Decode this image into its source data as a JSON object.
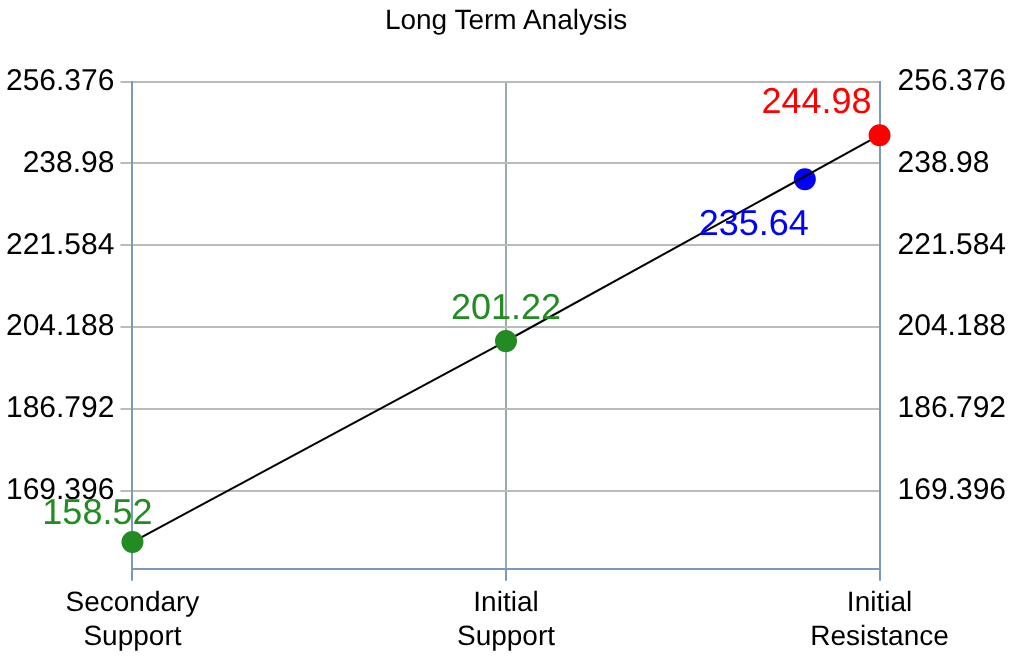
{
  "chart_data": {
    "type": "line",
    "title": "Long Term Analysis",
    "categories": [
      "Secondary Support",
      null,
      null,
      null,
      null,
      "Initial Support",
      null,
      null,
      null,
      null,
      "Initial Resistance"
    ],
    "ylim": [
      152.83,
      256.376
    ],
    "yticks": [
      169.396,
      186.792,
      204.188,
      221.584,
      238.98,
      256.376
    ],
    "y2lim": [
      152.83,
      256.376
    ],
    "y2ticks": [
      169.396,
      186.792,
      204.188,
      221.584,
      238.98,
      256.376
    ],
    "grid": true,
    "data_labels": true,
    "marker": "circle",
    "line_style": "solid",
    "series": [
      {
        "color": "#000000",
        "values": [
          158.52,
          null,
          null,
          null,
          null,
          201.22,
          null,
          null,
          null,
          null,
          244.98
        ],
        "colors": [
          "#228b22",
          null,
          null,
          null,
          null,
          "#228b22",
          null,
          null,
          null,
          null,
          "#ff0000"
        ]
      },
      {
        "type": "scatter",
        "color": "#0000ff",
        "values": [
          null,
          null,
          null,
          null,
          null,
          null,
          null,
          null,
          null,
          235.64,
          null
        ]
      }
    ]
  }
}
